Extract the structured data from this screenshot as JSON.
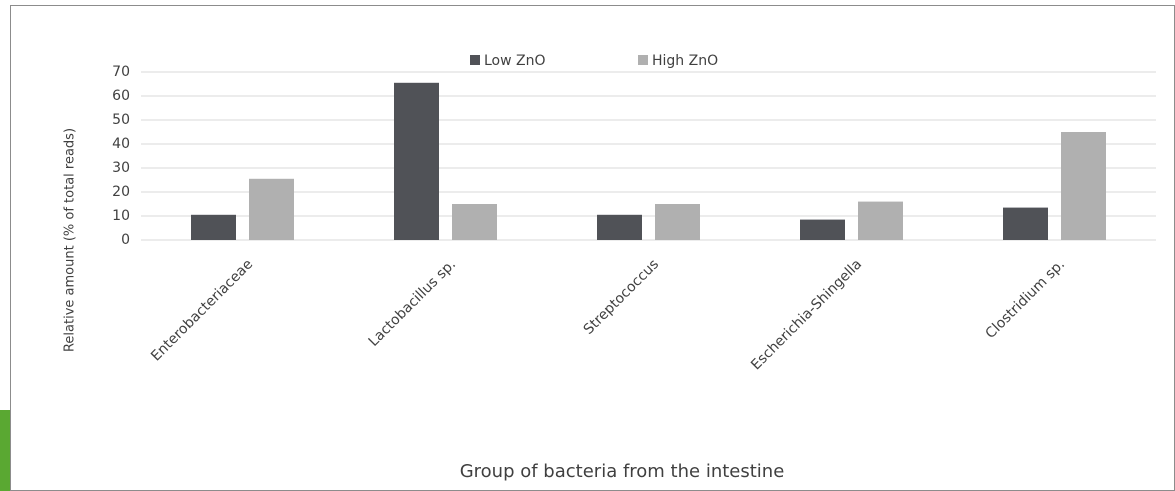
{
  "chart_data": {
    "type": "bar",
    "categories": [
      "Enterobacteriaceae",
      "Lactobacillus sp.",
      "Streptococcus",
      "Escherichia-Shingella",
      "Clostridium sp."
    ],
    "series": [
      {
        "name": "Low ZnO",
        "color": "#505257",
        "values": [
          10.5,
          65.5,
          10.5,
          8.5,
          13.5
        ]
      },
      {
        "name": "High ZnO",
        "color": "#b0b0b0",
        "values": [
          25.5,
          15,
          15,
          16,
          45
        ]
      }
    ],
    "ylim": [
      0,
      70
    ],
    "yticks": [
      0,
      10,
      20,
      30,
      40,
      50,
      60,
      70
    ],
    "grid": true,
    "y_label": "Relative amount  (% of total reads)",
    "x_label": "Group of bacteria from the intestine",
    "legend": "top"
  }
}
